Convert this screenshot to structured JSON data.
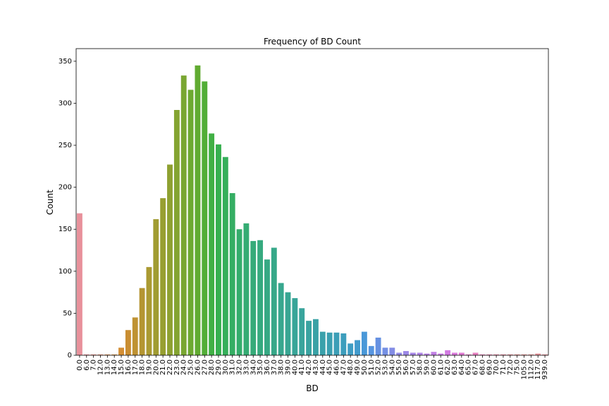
{
  "chart_data": {
    "type": "bar",
    "title": "Frequency of BD Count",
    "xlabel": "BD",
    "ylabel": "Count",
    "ylim": [
      0,
      365
    ],
    "yticks": [
      0,
      50,
      100,
      150,
      200,
      250,
      300,
      350
    ],
    "categories": [
      "0.0",
      "6.0",
      "7.0",
      "12.0",
      "13.0",
      "14.0",
      "15.0",
      "16.0",
      "17.0",
      "18.0",
      "19.0",
      "20.0",
      "21.0",
      "22.0",
      "23.0",
      "24.0",
      "25.0",
      "26.0",
      "27.0",
      "28.0",
      "29.0",
      "30.0",
      "31.0",
      "32.0",
      "33.0",
      "34.0",
      "35.0",
      "36.0",
      "37.0",
      "38.0",
      "39.0",
      "40.0",
      "41.0",
      "42.0",
      "43.0",
      "44.0",
      "45.0",
      "46.0",
      "47.0",
      "48.0",
      "49.0",
      "50.0",
      "51.0",
      "52.0",
      "53.0",
      "54.0",
      "55.0",
      "56.0",
      "57.0",
      "58.0",
      "59.0",
      "60.0",
      "61.0",
      "62.0",
      "63.0",
      "64.0",
      "65.0",
      "67.0",
      "68.0",
      "69.0",
      "70.0",
      "71.0",
      "72.0",
      "75.0",
      "105.0",
      "112.0",
      "117.0",
      "939.0"
    ],
    "values": [
      169,
      1,
      1,
      1,
      1,
      1,
      9,
      30,
      45,
      80,
      105,
      162,
      187,
      227,
      292,
      333,
      316,
      345,
      326,
      264,
      251,
      236,
      193,
      150,
      157,
      136,
      137,
      114,
      128,
      86,
      75,
      68,
      56,
      41,
      43,
      28,
      27,
      27,
      26,
      14,
      18,
      28,
      11,
      21,
      9,
      9,
      3,
      5,
      3,
      3,
      2,
      4,
      2,
      6,
      3,
      3,
      1,
      3,
      1,
      1,
      1,
      1,
      1,
      1,
      1,
      1,
      2,
      1
    ],
    "colors": [
      "#e8919b",
      "#e8919b",
      "#e6918a",
      "#e39378",
      "#dd9562",
      "#d89a52",
      "#d48f35",
      "#c98e32",
      "#bf9232",
      "#b49532",
      "#aa9a32",
      "#a19c32",
      "#979f31",
      "#8ea131",
      "#84a431",
      "#79a631",
      "#6da931",
      "#61ab31",
      "#52ae37",
      "#40b044",
      "#36b04f",
      "#35af5a",
      "#35ae63",
      "#34ad6c",
      "#35ac73",
      "#36ab79",
      "#36aa7f",
      "#37a984",
      "#37a889",
      "#37a78e",
      "#38a693",
      "#38a598",
      "#39a49c",
      "#39a3a1",
      "#3aa2a6",
      "#3aa1ab",
      "#3ba0b1",
      "#3c9fb7",
      "#3d9ebd",
      "#3f9dc4",
      "#429bcd",
      "#4998d8",
      "#5795e0",
      "#6691e2",
      "#7590e4",
      "#838de5",
      "#918ae6",
      "#9c88e7",
      "#a686e7",
      "#af84e6",
      "#b882e6",
      "#c17fe5",
      "#c97de4",
      "#d27ae2",
      "#da78db",
      "#e078d2",
      "#e47ac9",
      "#e67dbf",
      "#e780b6",
      "#e883ad",
      "#e886a4",
      "#e8899d",
      "#e88c96",
      "#e88e90",
      "#e89090",
      "#e89191",
      "#e8929a",
      "#e8929a"
    ]
  }
}
